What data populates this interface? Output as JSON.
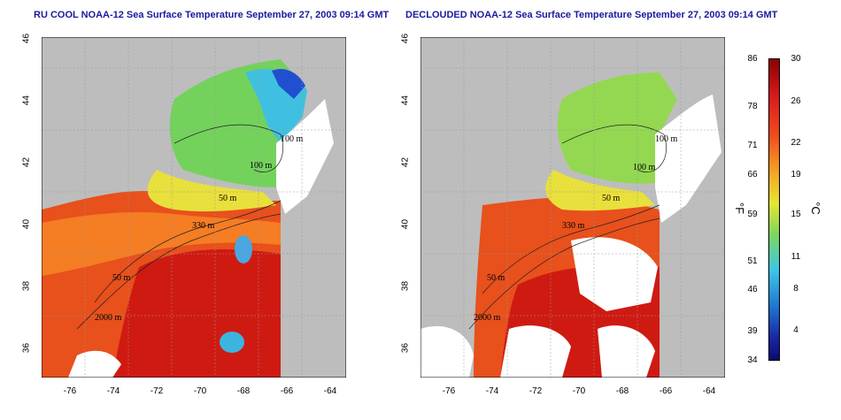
{
  "titles": {
    "left": "RU COOL NOAA-12 Sea Surface Temperature September 27, 2003 09:14 GMT",
    "right": "DECLOUDED NOAA-12 Sea Surface Temperature September 27, 2003 09:14 GMT"
  },
  "axes": {
    "x_ticks": [
      "-76",
      "-74",
      "-72",
      "-70",
      "-68",
      "-66",
      "-64"
    ],
    "y_ticks": [
      "36",
      "38",
      "40",
      "42",
      "44",
      "46"
    ]
  },
  "contour_labels": [
    "100 m",
    "100 m",
    "50 m",
    "330 m",
    "50 m",
    "2000 m"
  ],
  "colorbar": {
    "fahrenheit_ticks": [
      "86",
      "78",
      "71",
      "66",
      "59",
      "51",
      "46",
      "39",
      "34"
    ],
    "celsius_ticks": [
      "30",
      "26",
      "22",
      "19",
      "15",
      "11",
      "8",
      "4"
    ],
    "fahrenheit_unit": "°F",
    "celsius_unit": "°C"
  },
  "colors": {
    "land": "#bdbdbd",
    "cloud": "#ffffff",
    "warm": "#e2261b",
    "hot": "#c8140e",
    "orange": "#f0641e",
    "yellow": "#e6e632",
    "green": "#6ed25a",
    "cyan": "#3cc8e6",
    "blue": "#1e3cc8"
  }
}
